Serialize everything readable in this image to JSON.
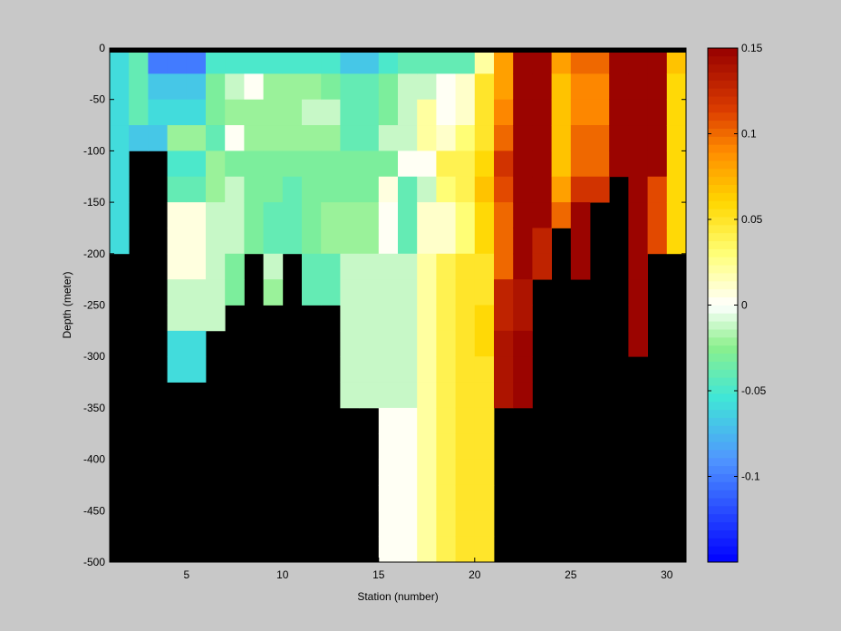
{
  "chart_data": {
    "type": "heatmap",
    "xlabel": "Station (number)",
    "ylabel": "Depth (meter)",
    "xlim": [
      1,
      31
    ],
    "ylim": [
      -500,
      0
    ],
    "x_ticks": [
      5,
      10,
      15,
      20,
      25,
      30
    ],
    "y_ticks": [
      0,
      -50,
      -100,
      -150,
      -200,
      -250,
      -300,
      -350,
      -400,
      -450,
      -500
    ],
    "bin_depth_m": 25,
    "missing_color": "#000000",
    "colorbar": {
      "range": [
        -0.15,
        0.15
      ],
      "ticks": [
        0.15,
        0.1,
        0.05,
        0,
        -0.05,
        -0.1
      ],
      "colormap": "jet-white-center",
      "levels": 64
    },
    "columns": [
      {
        "station": 1.5,
        "values": [
          -0.06,
          -0.06,
          -0.06,
          -0.06,
          -0.06,
          -0.06,
          -0.06,
          -0.06
        ]
      },
      {
        "station": 2.5,
        "values": [
          -0.04,
          -0.04,
          -0.04,
          -0.07
        ]
      },
      {
        "station": 3.5,
        "values": [
          -0.1,
          -0.07,
          -0.06,
          -0.07
        ]
      },
      {
        "station": 4.5,
        "values": [
          -0.1,
          -0.07,
          -0.06,
          -0.02,
          -0.05,
          -0.04,
          0.005,
          0.005,
          0.005,
          -0.01,
          -0.01,
          -0.06,
          -0.06
        ]
      },
      {
        "station": 5.5,
        "values": [
          -0.1,
          -0.07,
          -0.06,
          -0.02,
          -0.05,
          -0.04,
          0.005,
          0.005,
          0.005,
          -0.01,
          -0.01,
          -0.06,
          -0.06
        ]
      },
      {
        "station": 6.5,
        "values": [
          -0.05,
          -0.03,
          -0.03,
          -0.04,
          -0.02,
          -0.02,
          -0.01,
          -0.01,
          -0.01,
          -0.01,
          -0.01
        ]
      },
      {
        "station": 7.5,
        "values": [
          -0.05,
          -0.01,
          -0.02,
          0.0,
          -0.03,
          -0.01,
          -0.01,
          -0.01,
          -0.03,
          -0.03
        ]
      },
      {
        "station": 8.5,
        "values": [
          -0.05,
          0.0,
          -0.02,
          -0.02,
          -0.03,
          -0.03,
          -0.03,
          -0.03
        ]
      },
      {
        "station": 9.5,
        "values": [
          -0.05,
          -0.02,
          -0.02,
          -0.02,
          -0.03,
          -0.03,
          -0.04,
          -0.04,
          -0.01,
          -0.02
        ]
      },
      {
        "station": 10.5,
        "values": [
          -0.05,
          -0.02,
          -0.02,
          -0.02,
          -0.03,
          -0.04,
          -0.04,
          -0.04
        ]
      },
      {
        "station": 11.5,
        "values": [
          -0.05,
          -0.02,
          -0.01,
          -0.02,
          -0.03,
          -0.03,
          -0.03,
          -0.03,
          -0.04,
          -0.04
        ]
      },
      {
        "station": 12.5,
        "values": [
          -0.05,
          -0.03,
          -0.01,
          -0.02,
          -0.03,
          -0.03,
          -0.02,
          -0.02,
          -0.04,
          -0.04
        ]
      },
      {
        "station": 13.5,
        "values": [
          -0.07,
          -0.04,
          -0.04,
          -0.04,
          -0.03,
          -0.03,
          -0.02,
          -0.02,
          -0.01,
          -0.01,
          -0.01,
          -0.01,
          -0.01,
          -0.01
        ]
      },
      {
        "station": 14.5,
        "values": [
          -0.07,
          -0.04,
          -0.04,
          -0.04,
          -0.03,
          -0.03,
          -0.02,
          -0.02,
          -0.01,
          -0.01,
          -0.01,
          -0.01,
          -0.01,
          -0.01
        ]
      },
      {
        "station": 15.5,
        "values": [
          -0.05,
          -0.03,
          -0.03,
          -0.01,
          -0.03,
          0.005,
          0.0,
          0.0,
          -0.01,
          -0.01,
          -0.01,
          -0.01,
          -0.01,
          -0.01,
          0.0,
          0.0,
          0.0,
          0.0,
          0.0,
          0.0
        ]
      },
      {
        "station": 16.5,
        "values": [
          -0.04,
          -0.01,
          -0.01,
          -0.01,
          0.0,
          -0.04,
          -0.04,
          -0.04,
          -0.01,
          -0.01,
          -0.01,
          -0.01,
          -0.01,
          -0.01,
          0.0,
          0.0,
          0.0,
          0.0,
          0.0,
          0.0
        ]
      },
      {
        "station": 17.5,
        "values": [
          -0.04,
          -0.01,
          0.02,
          0.02,
          0.0,
          -0.01,
          0.01,
          0.01,
          0.02,
          0.02,
          0.02,
          0.02,
          0.02,
          0.02,
          0.02,
          0.02,
          0.02,
          0.02,
          0.02,
          0.02
        ]
      },
      {
        "station": 18.5,
        "values": [
          -0.04,
          0.0,
          0.0,
          0.01,
          0.04,
          0.03,
          0.01,
          0.01,
          0.04,
          0.04,
          0.04,
          0.04,
          0.04,
          0.04,
          0.04,
          0.04,
          0.04,
          0.04,
          0.04,
          0.04
        ]
      },
      {
        "station": 19.5,
        "values": [
          -0.04,
          0.01,
          0.01,
          0.03,
          0.04,
          0.04,
          0.03,
          0.03,
          0.05,
          0.05,
          0.05,
          0.05,
          0.05,
          0.05,
          0.05,
          0.05,
          0.05,
          0.05,
          0.05,
          0.05
        ]
      },
      {
        "station": 20.5,
        "values": [
          0.02,
          0.05,
          0.05,
          0.05,
          0.06,
          0.07,
          0.06,
          0.06,
          0.05,
          0.05,
          0.06,
          0.06,
          0.05,
          0.05,
          0.05,
          0.05,
          0.05,
          0.05,
          0.05,
          0.05
        ]
      },
      {
        "station": 21.5,
        "values": [
          0.08,
          0.08,
          0.09,
          0.1,
          0.12,
          0.11,
          0.1,
          0.1,
          0.1,
          0.13,
          0.13,
          0.14,
          0.14,
          0.14
        ]
      },
      {
        "station": 22.5,
        "values": [
          0.15,
          0.15,
          0.15,
          0.15,
          0.15,
          0.15,
          0.15,
          0.15,
          0.15,
          0.14,
          0.14,
          0.15,
          0.15,
          0.15
        ]
      },
      {
        "station": 23.5,
        "values": [
          0.15,
          0.15,
          0.15,
          0.15,
          0.15,
          0.15,
          0.15,
          0.13,
          0.13
        ]
      },
      {
        "station": 24.5,
        "values": [
          0.08,
          0.07,
          0.07,
          0.07,
          0.07,
          0.08,
          0.1
        ]
      },
      {
        "station": 25.5,
        "values": [
          0.1,
          0.09,
          0.09,
          0.1,
          0.1,
          0.12,
          0.15,
          0.15,
          0.15
        ]
      },
      {
        "station": 26.5,
        "values": [
          0.1,
          0.09,
          0.09,
          0.1,
          0.1,
          0.12
        ]
      },
      {
        "station": 27.5,
        "values": [
          0.15,
          0.15,
          0.15,
          0.15,
          0.15
        ]
      },
      {
        "station": 28.5,
        "values": [
          0.15,
          0.15,
          0.15,
          0.15,
          0.15,
          0.15,
          0.15,
          0.15,
          0.15,
          0.15,
          0.15,
          0.15
        ]
      },
      {
        "station": 29.5,
        "values": [
          0.15,
          0.15,
          0.15,
          0.15,
          0.15,
          0.11,
          0.11,
          0.11
        ]
      },
      {
        "station": 30.5,
        "values": [
          0.07,
          0.06,
          0.06,
          0.06,
          0.06,
          0.06,
          0.06,
          0.06
        ]
      }
    ]
  }
}
